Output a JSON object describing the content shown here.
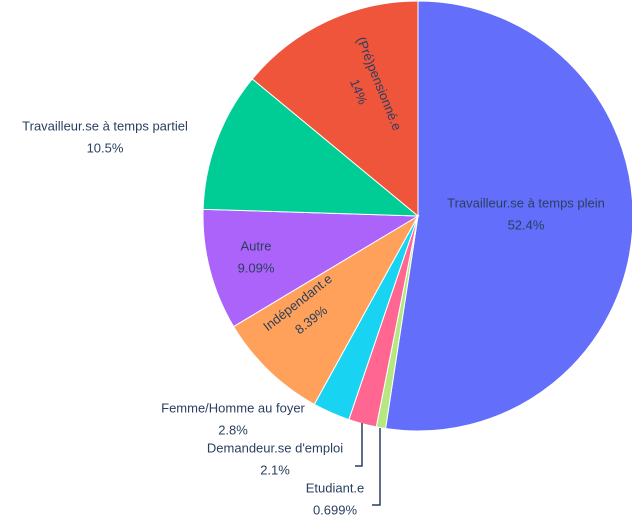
{
  "chart_data": {
    "type": "pie",
    "series": [
      {
        "labels": [
          "Travailleur.se à temps plein",
          "Etudiant.e",
          "Demandeur.se d'emploi",
          "Femme/Homme au foyer",
          "Indépendant.e",
          "Autre",
          "Travailleur.se à temps partiel",
          "(Pré)pensionné.e"
        ],
        "values": [
          52.4,
          0.699,
          2.1,
          2.8,
          8.39,
          9.09,
          10.5,
          14
        ],
        "value_labels": [
          "52.4%",
          "0.699%",
          "2.1%",
          "2.8%",
          "8.39%",
          "9.09%",
          "10.5%",
          "14%"
        ],
        "colors": [
          "#636efa",
          "#b6e880",
          "#ff6692",
          "#19d3f3",
          "#ffa15a",
          "#ab63fa",
          "#00cc96",
          "#ef553b"
        ]
      }
    ]
  }
}
